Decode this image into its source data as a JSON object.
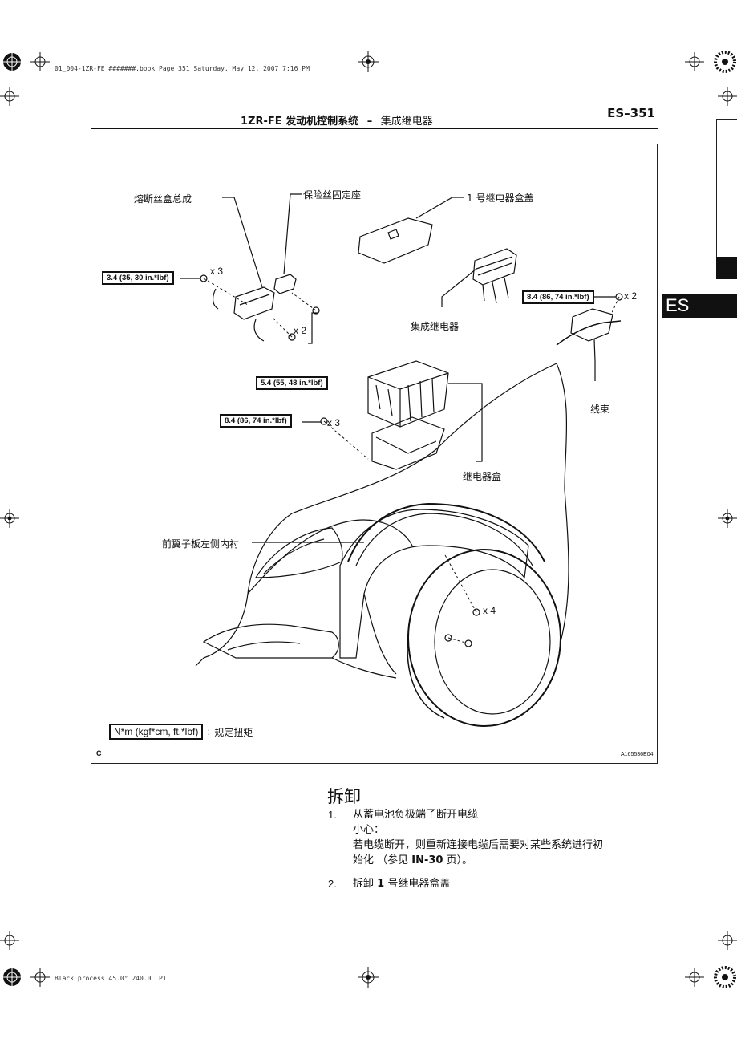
{
  "print_info": {
    "top": "01_004-1ZR-FE #######.book  Page 351  Saturday, May 12, 2007  7:16 PM",
    "bottom": "Black process 45.0°  240.0 LPI"
  },
  "header": {
    "title": "1ZR-FE 发动机控制系统",
    "separator": "–",
    "subtitle": "集成继电器",
    "page_code": "ES–351"
  },
  "side_tab": {
    "label": "ES"
  },
  "figure": {
    "labels": {
      "fuse_box": "熔断丝盒总成",
      "fuse_holder": "保险丝固定座",
      "relay_cover": "1 号继电器盒盖",
      "integration_relay": "集成继电器",
      "wire_harness": "线束",
      "relay_box": "继电器盒",
      "fender_liner": "前翼子板左侧内衬"
    },
    "torques": {
      "t1": "3.4 (35, 30 in.*lbf)",
      "t2": "5.4 (55, 48 in.*lbf)",
      "t3": "8.4 (86, 74 in.*lbf)",
      "t4": "8.4 (86, 74 in.*lbf)"
    },
    "quantities": {
      "q1": "x 3",
      "q2": "x 2",
      "q3": "x 3",
      "q4": "x 2",
      "q5": "x 4"
    },
    "legend": {
      "unit": "N*m (kgf*cm, ft.*lbf)",
      "colon": ":",
      "text": "规定扭矩"
    },
    "corner_letter": "C",
    "figure_id": "A165536E04"
  },
  "section": {
    "title": "拆卸",
    "steps": [
      {
        "num": "1.",
        "text": "从蓄电池负极端子断开电缆",
        "caution_label": "小心：",
        "caution_line1": "若电缆断开，则重新连接电缆后需要对某些系统进行初",
        "caution_line2_pre": "始化 （参见 ",
        "caution_ref": "IN-30",
        "caution_line2_post": " 页）。"
      },
      {
        "num": "2.",
        "text_pre": "拆卸 ",
        "text_bold": "1",
        "text_post": " 号继电器盒盖"
      }
    ]
  }
}
